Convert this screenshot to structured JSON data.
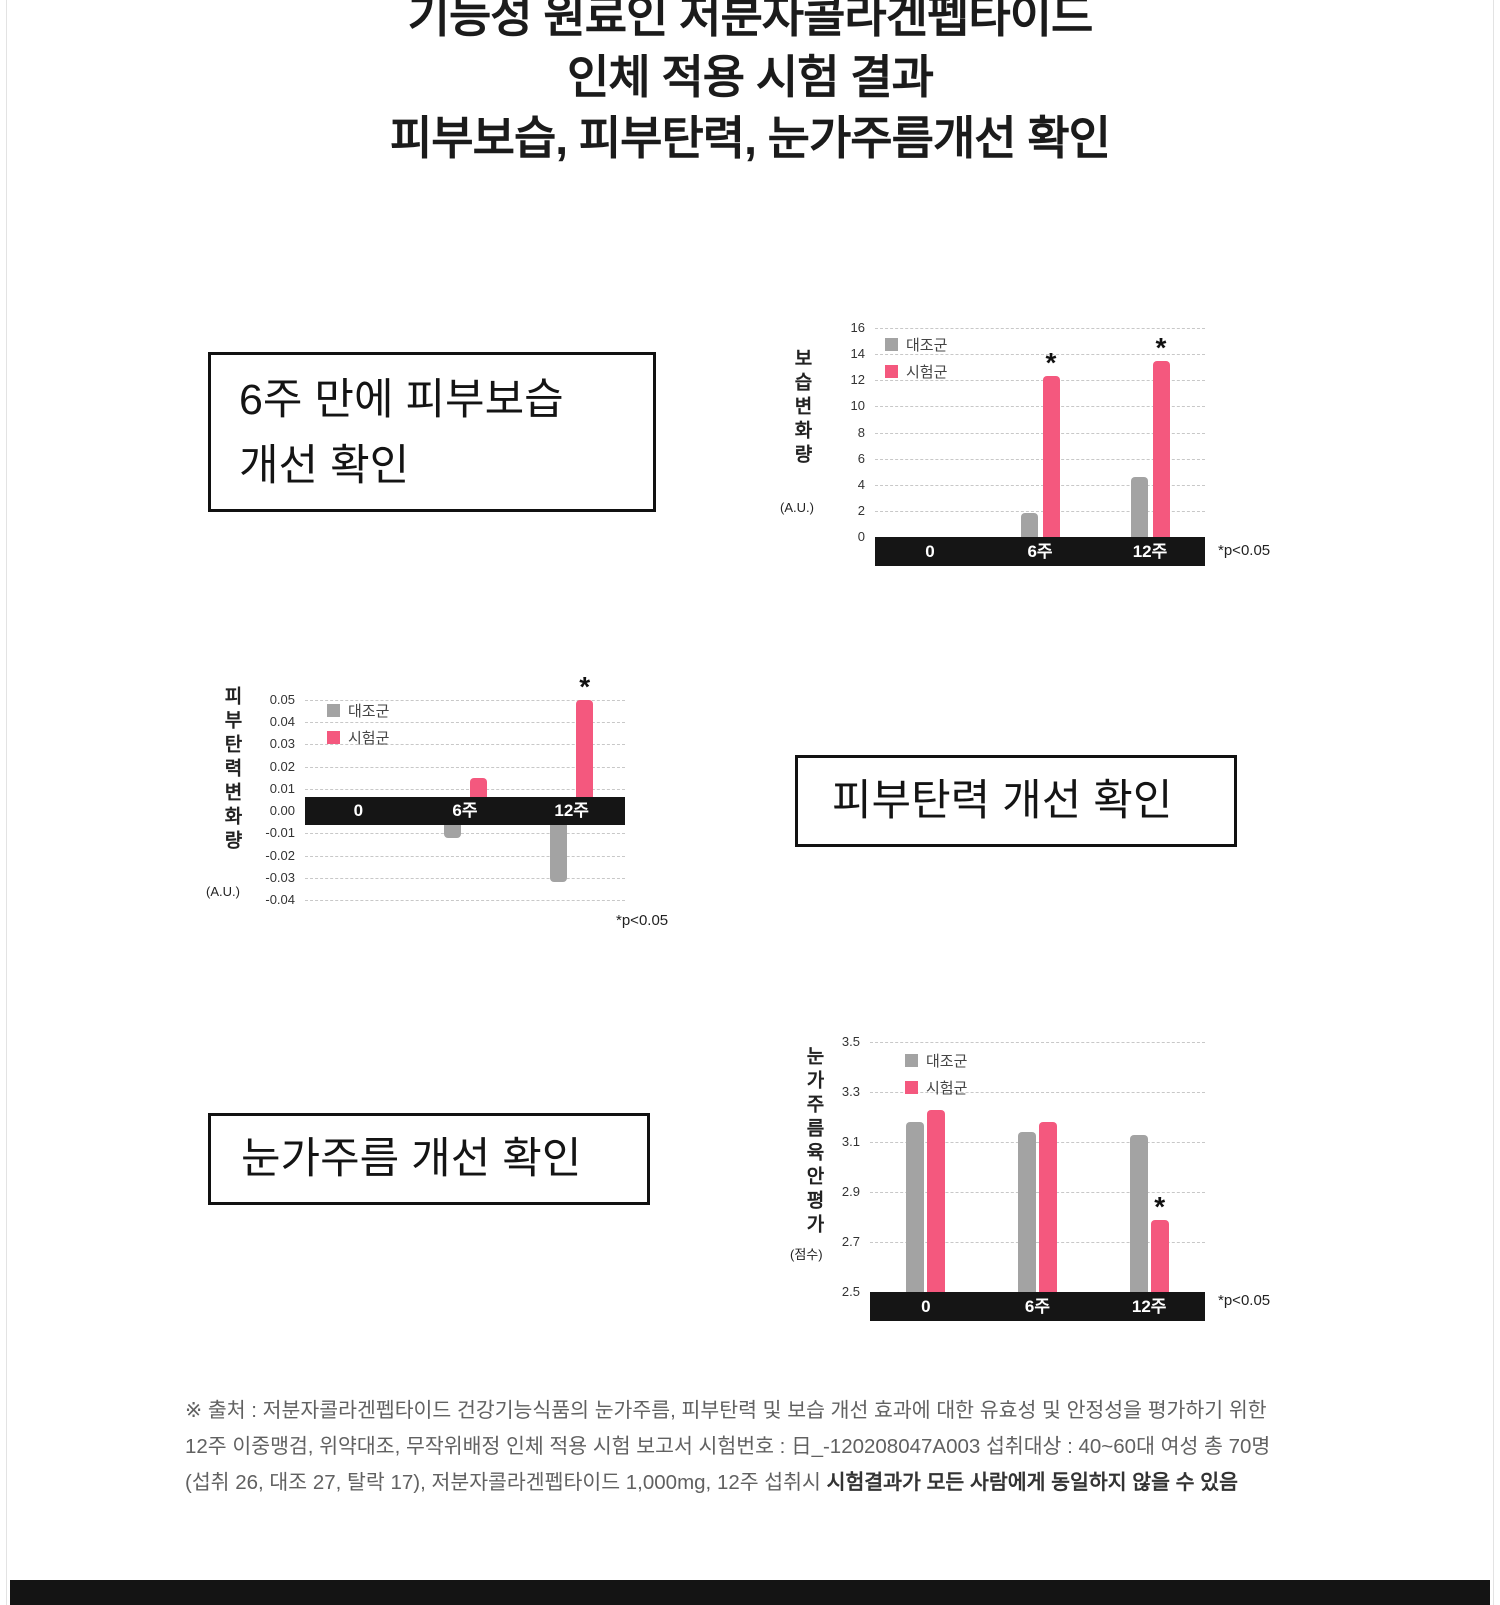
{
  "colors": {
    "control": "#a3a3a3",
    "test": "#f4587e",
    "axis_black": "#151515"
  },
  "page": {
    "title_lines": [
      "기능성 원료인 저분자콜라겐펩타이드",
      "인체 적용 시험 결과",
      "피부보습, 피부탄력, 눈가주름개선 확인"
    ]
  },
  "callouts": {
    "moisture_line1": "6주 만에 피부보습",
    "moisture_line2": "개선 확인",
    "elasticity": "피부탄력 개선 확인",
    "wrinkle": "눈가주름 개선 확인"
  },
  "chart_data": [
    {
      "type": "bar",
      "ylabel": "보습변화량",
      "ylabel_unit": "(A.U.)",
      "categories": [
        "0",
        "6주",
        "12주"
      ],
      "series": [
        {
          "name": "대조군",
          "values": [
            0,
            1.8,
            4.6
          ]
        },
        {
          "name": "시험군",
          "values": [
            0,
            12.3,
            13.5
          ]
        }
      ],
      "significance_test_series": [
        null,
        "*",
        "*"
      ],
      "ylim": [
        0,
        16
      ],
      "yticks": [
        0,
        2,
        4,
        6,
        8,
        10,
        12,
        14,
        16
      ],
      "ytick_labels": [
        "0",
        "2",
        "4",
        "6",
        "8",
        "10",
        "12",
        "14",
        "16"
      ],
      "baseline": 0,
      "note": "*p<0.05",
      "legend_position": "top-left",
      "grid": "dashed"
    },
    {
      "type": "bar",
      "ylabel": "피부탄력변화량",
      "ylabel_unit": "(A.U.)",
      "categories": [
        "0",
        "6주",
        "12주"
      ],
      "series": [
        {
          "name": "대조군",
          "values": [
            0,
            -0.012,
            -0.032
          ]
        },
        {
          "name": "시험군",
          "values": [
            0,
            0.015,
            0.05
          ]
        }
      ],
      "significance_test_series": [
        null,
        null,
        "*"
      ],
      "ylim": [
        -0.04,
        0.05
      ],
      "yticks": [
        0.05,
        0.04,
        0.03,
        0.02,
        0.01,
        0,
        -0.01,
        -0.02,
        -0.03,
        -0.04
      ],
      "ytick_labels": [
        "0.05",
        "0.04",
        "0.03",
        "0.02",
        "0.01",
        "0.00",
        "-0.01",
        "-0.02",
        "-0.03",
        "-0.04"
      ],
      "baseline": 0,
      "note": "*p<0.05",
      "legend_position": "top-left",
      "grid": "dashed"
    },
    {
      "type": "bar",
      "ylabel": "눈가주름육안평가",
      "ylabel_unit": "(점수)",
      "categories": [
        "0",
        "6주",
        "12주"
      ],
      "series": [
        {
          "name": "대조군",
          "values": [
            3.18,
            3.14,
            3.13
          ]
        },
        {
          "name": "시험군",
          "values": [
            3.23,
            3.18,
            2.79
          ]
        }
      ],
      "significance_test_series": [
        null,
        null,
        "*"
      ],
      "ylim": [
        2.5,
        3.5
      ],
      "yticks": [
        2.5,
        2.7,
        2.9,
        3.1,
        3.3,
        3.5
      ],
      "ytick_labels": [
        "2.5",
        "2.7",
        "2.9",
        "3.1",
        "3.3",
        "3.5"
      ],
      "baseline": 2.5,
      "note": "*p<0.05",
      "legend_position": "top-left",
      "grid": "dashed"
    }
  ],
  "footer": {
    "lines": [
      [
        {
          "t": "※ 출처 : 저분자콜라겐펩타이드 건강기능식품의 눈가주름, 피부탄력 및 보습 개선 효과에 대한 유효성 및 안정성을 평가하기 위한"
        }
      ],
      [
        {
          "t": "12주 이중맹검, 위약대조, 무작위배정 인체 적용 시험 보고서 시험번호 : 日_-120208047A003 섭취대상 : 40~60대 여성 총 70명"
        }
      ],
      [
        {
          "t": "(섭취 26, 대조 27, 탈락 17), 저분자콜라겐펩타이드 1,000mg, 12주 섭취시 "
        },
        {
          "t": "시험결과가 모든 사람에게 동일하지 않을 수 있음",
          "bold": true
        }
      ]
    ]
  }
}
